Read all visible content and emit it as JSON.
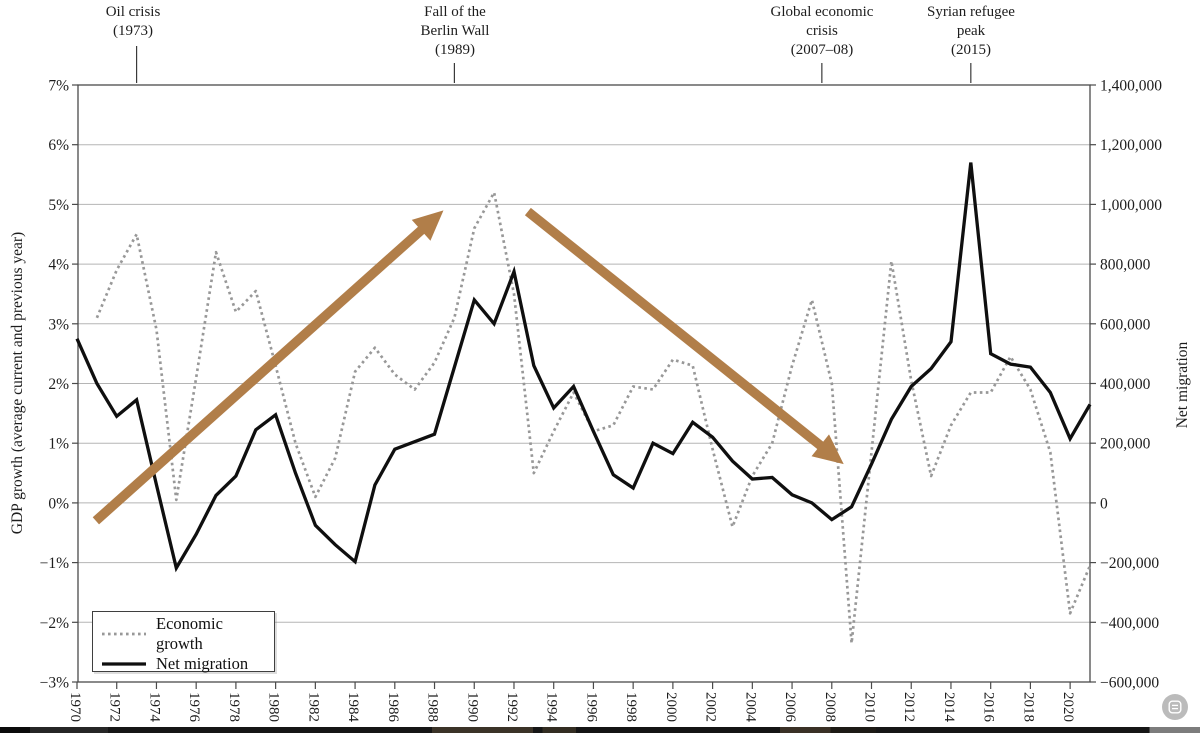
{
  "annotations": [
    {
      "id": "oil-crisis",
      "year": 1973,
      "lines": [
        "Oil crisis",
        "(1973)"
      ]
    },
    {
      "id": "berlin-wall",
      "year": 1989,
      "lines": [
        "Fall of the",
        "Berlin Wall",
        "(1989)"
      ]
    },
    {
      "id": "global-crisis",
      "year": 2007.5,
      "lines": [
        "Global economic",
        "crisis",
        "(2007–08)"
      ]
    },
    {
      "id": "syrian-peak",
      "year": 2015,
      "lines": [
        "Syrian refugee",
        "peak",
        "(2015)"
      ]
    }
  ],
  "legend": {
    "items": [
      {
        "label": "Economic growth",
        "style": "dotted"
      },
      {
        "label": "Net migration",
        "style": "solid"
      }
    ]
  },
  "chart_data": {
    "type": "line",
    "grid": "horizontal",
    "legend_position": "lower-left",
    "years": [
      1970,
      1971,
      1972,
      1973,
      1974,
      1975,
      1976,
      1977,
      1978,
      1979,
      1980,
      1981,
      1982,
      1983,
      1984,
      1985,
      1986,
      1987,
      1988,
      1989,
      1990,
      1991,
      1992,
      1993,
      1994,
      1995,
      1996,
      1997,
      1998,
      1999,
      2000,
      2001,
      2002,
      2003,
      2004,
      2005,
      2006,
      2007,
      2008,
      2009,
      2010,
      2011,
      2012,
      2013,
      2014,
      2015,
      2016,
      2017,
      2018,
      2019,
      2020,
      2021
    ],
    "series": [
      {
        "name": "Economic growth",
        "axis": "left",
        "unit": "percent",
        "line_style": "dotted",
        "color": "#989898",
        "values": [
          null,
          3.1,
          3.9,
          4.5,
          2.9,
          0.05,
          2.1,
          4.2,
          3.2,
          3.55,
          2.3,
          1.0,
          0.1,
          0.75,
          2.2,
          2.6,
          2.15,
          1.9,
          2.35,
          3.1,
          4.6,
          5.2,
          3.5,
          0.5,
          1.2,
          1.85,
          1.2,
          1.3,
          1.95,
          1.9,
          2.4,
          2.3,
          0.9,
          -0.4,
          0.45,
          1.0,
          2.3,
          3.4,
          2.0,
          -2.35,
          0.85,
          4.05,
          2.05,
          0.45,
          1.3,
          1.85,
          1.85,
          2.45,
          1.9,
          0.85,
          -1.85,
          -1.05
        ]
      },
      {
        "name": "Net migration",
        "axis": "right",
        "unit": "persons",
        "line_style": "solid",
        "color": "#0f0f0f",
        "values": [
          550000,
          400000,
          290000,
          345000,
          60000,
          -218000,
          -105000,
          25000,
          90000,
          245000,
          295000,
          100000,
          -75000,
          -140000,
          -197000,
          60000,
          180000,
          205000,
          230000,
          455000,
          680000,
          600000,
          775000,
          460000,
          318000,
          390000,
          240000,
          94000,
          50000,
          200000,
          165000,
          270000,
          220000,
          140000,
          80000,
          85000,
          27000,
          0,
          -56000,
          -13000,
          130000,
          280000,
          390000,
          450000,
          540000,
          1140000,
          500000,
          465000,
          455000,
          370000,
          215000,
          330000
        ]
      }
    ],
    "left_axis": {
      "title": "GDP growth (average current and previous year)",
      "range": [
        -3,
        7
      ],
      "ticks": [
        {
          "value": 7,
          "label": "7%"
        },
        {
          "value": 6,
          "label": "6%"
        },
        {
          "value": 5,
          "label": "5%"
        },
        {
          "value": 4,
          "label": "4%"
        },
        {
          "value": 3,
          "label": "3%"
        },
        {
          "value": 2,
          "label": "2%"
        },
        {
          "value": 1,
          "label": "1%"
        },
        {
          "value": 0,
          "label": "0%"
        },
        {
          "value": -1,
          "label": "−1%"
        },
        {
          "value": -2,
          "label": "−2%"
        },
        {
          "value": -3,
          "label": "−3%"
        }
      ]
    },
    "right_axis": {
      "title": "Net migration",
      "range": [
        -600000,
        1400000
      ],
      "ticks": [
        {
          "value": 1400000,
          "label": "1,400,000"
        },
        {
          "value": 1200000,
          "label": "1,200,000"
        },
        {
          "value": 1000000,
          "label": "1,000,000"
        },
        {
          "value": 800000,
          "label": "800,000"
        },
        {
          "value": 600000,
          "label": "600,000"
        },
        {
          "value": 400000,
          "label": "400,000"
        },
        {
          "value": 200000,
          "label": "200,000"
        },
        {
          "value": 0,
          "label": "0"
        },
        {
          "value": -200000,
          "label": "−200,000"
        },
        {
          "value": -400000,
          "label": "−400,000"
        },
        {
          "value": -600000,
          "label": "−600,000"
        }
      ]
    },
    "x_axis": {
      "range": [
        1970,
        2021
      ],
      "ticks": [
        {
          "value": 1970,
          "label": "1970"
        },
        {
          "value": 1972,
          "label": "1972"
        },
        {
          "value": 1974,
          "label": "1974"
        },
        {
          "value": 1976,
          "label": "1976"
        },
        {
          "value": 1978,
          "label": "1978"
        },
        {
          "value": 1980,
          "label": "1980"
        },
        {
          "value": 1982,
          "label": "1982"
        },
        {
          "value": 1984,
          "label": "1984"
        },
        {
          "value": 1986,
          "label": "1986"
        },
        {
          "value": 1988,
          "label": "1988"
        },
        {
          "value": 1990,
          "label": "1990"
        },
        {
          "value": 1992,
          "label": "1992"
        },
        {
          "value": 1994,
          "label": "1994"
        },
        {
          "value": 1996,
          "label": "1996"
        },
        {
          "value": 1998,
          "label": "1998"
        },
        {
          "value": 2000,
          "label": "2000"
        },
        {
          "value": 2002,
          "label": "2002"
        },
        {
          "value": 2004,
          "label": "2004"
        },
        {
          "value": 2006,
          "label": "2006"
        },
        {
          "value": 2008,
          "label": "2008"
        },
        {
          "value": 2010,
          "label": "2010"
        },
        {
          "value": 2012,
          "label": "2012"
        },
        {
          "value": 2014,
          "label": "2014"
        },
        {
          "value": 2016,
          "label": "2016"
        },
        {
          "value": 2018,
          "label": "2018"
        },
        {
          "value": 2020,
          "label": "2020"
        }
      ]
    },
    "arrows": [
      {
        "name": "rising-trend-arrow",
        "color": "#b17e49",
        "from": {
          "year": 1970.95,
          "value": -0.3
        },
        "to": {
          "year": 1988.45,
          "value": 4.9
        }
      },
      {
        "name": "falling-trend-arrow",
        "color": "#b17e49",
        "from": {
          "year": 1992.7,
          "value": 4.88
        },
        "to": {
          "year": 2008.6,
          "value": 0.65
        }
      }
    ],
    "colors": {
      "gridline": "#b5b5b5",
      "spine": "#4a4a4a",
      "event_line": "#3a3a3a",
      "arrow": "#b17e49"
    }
  }
}
